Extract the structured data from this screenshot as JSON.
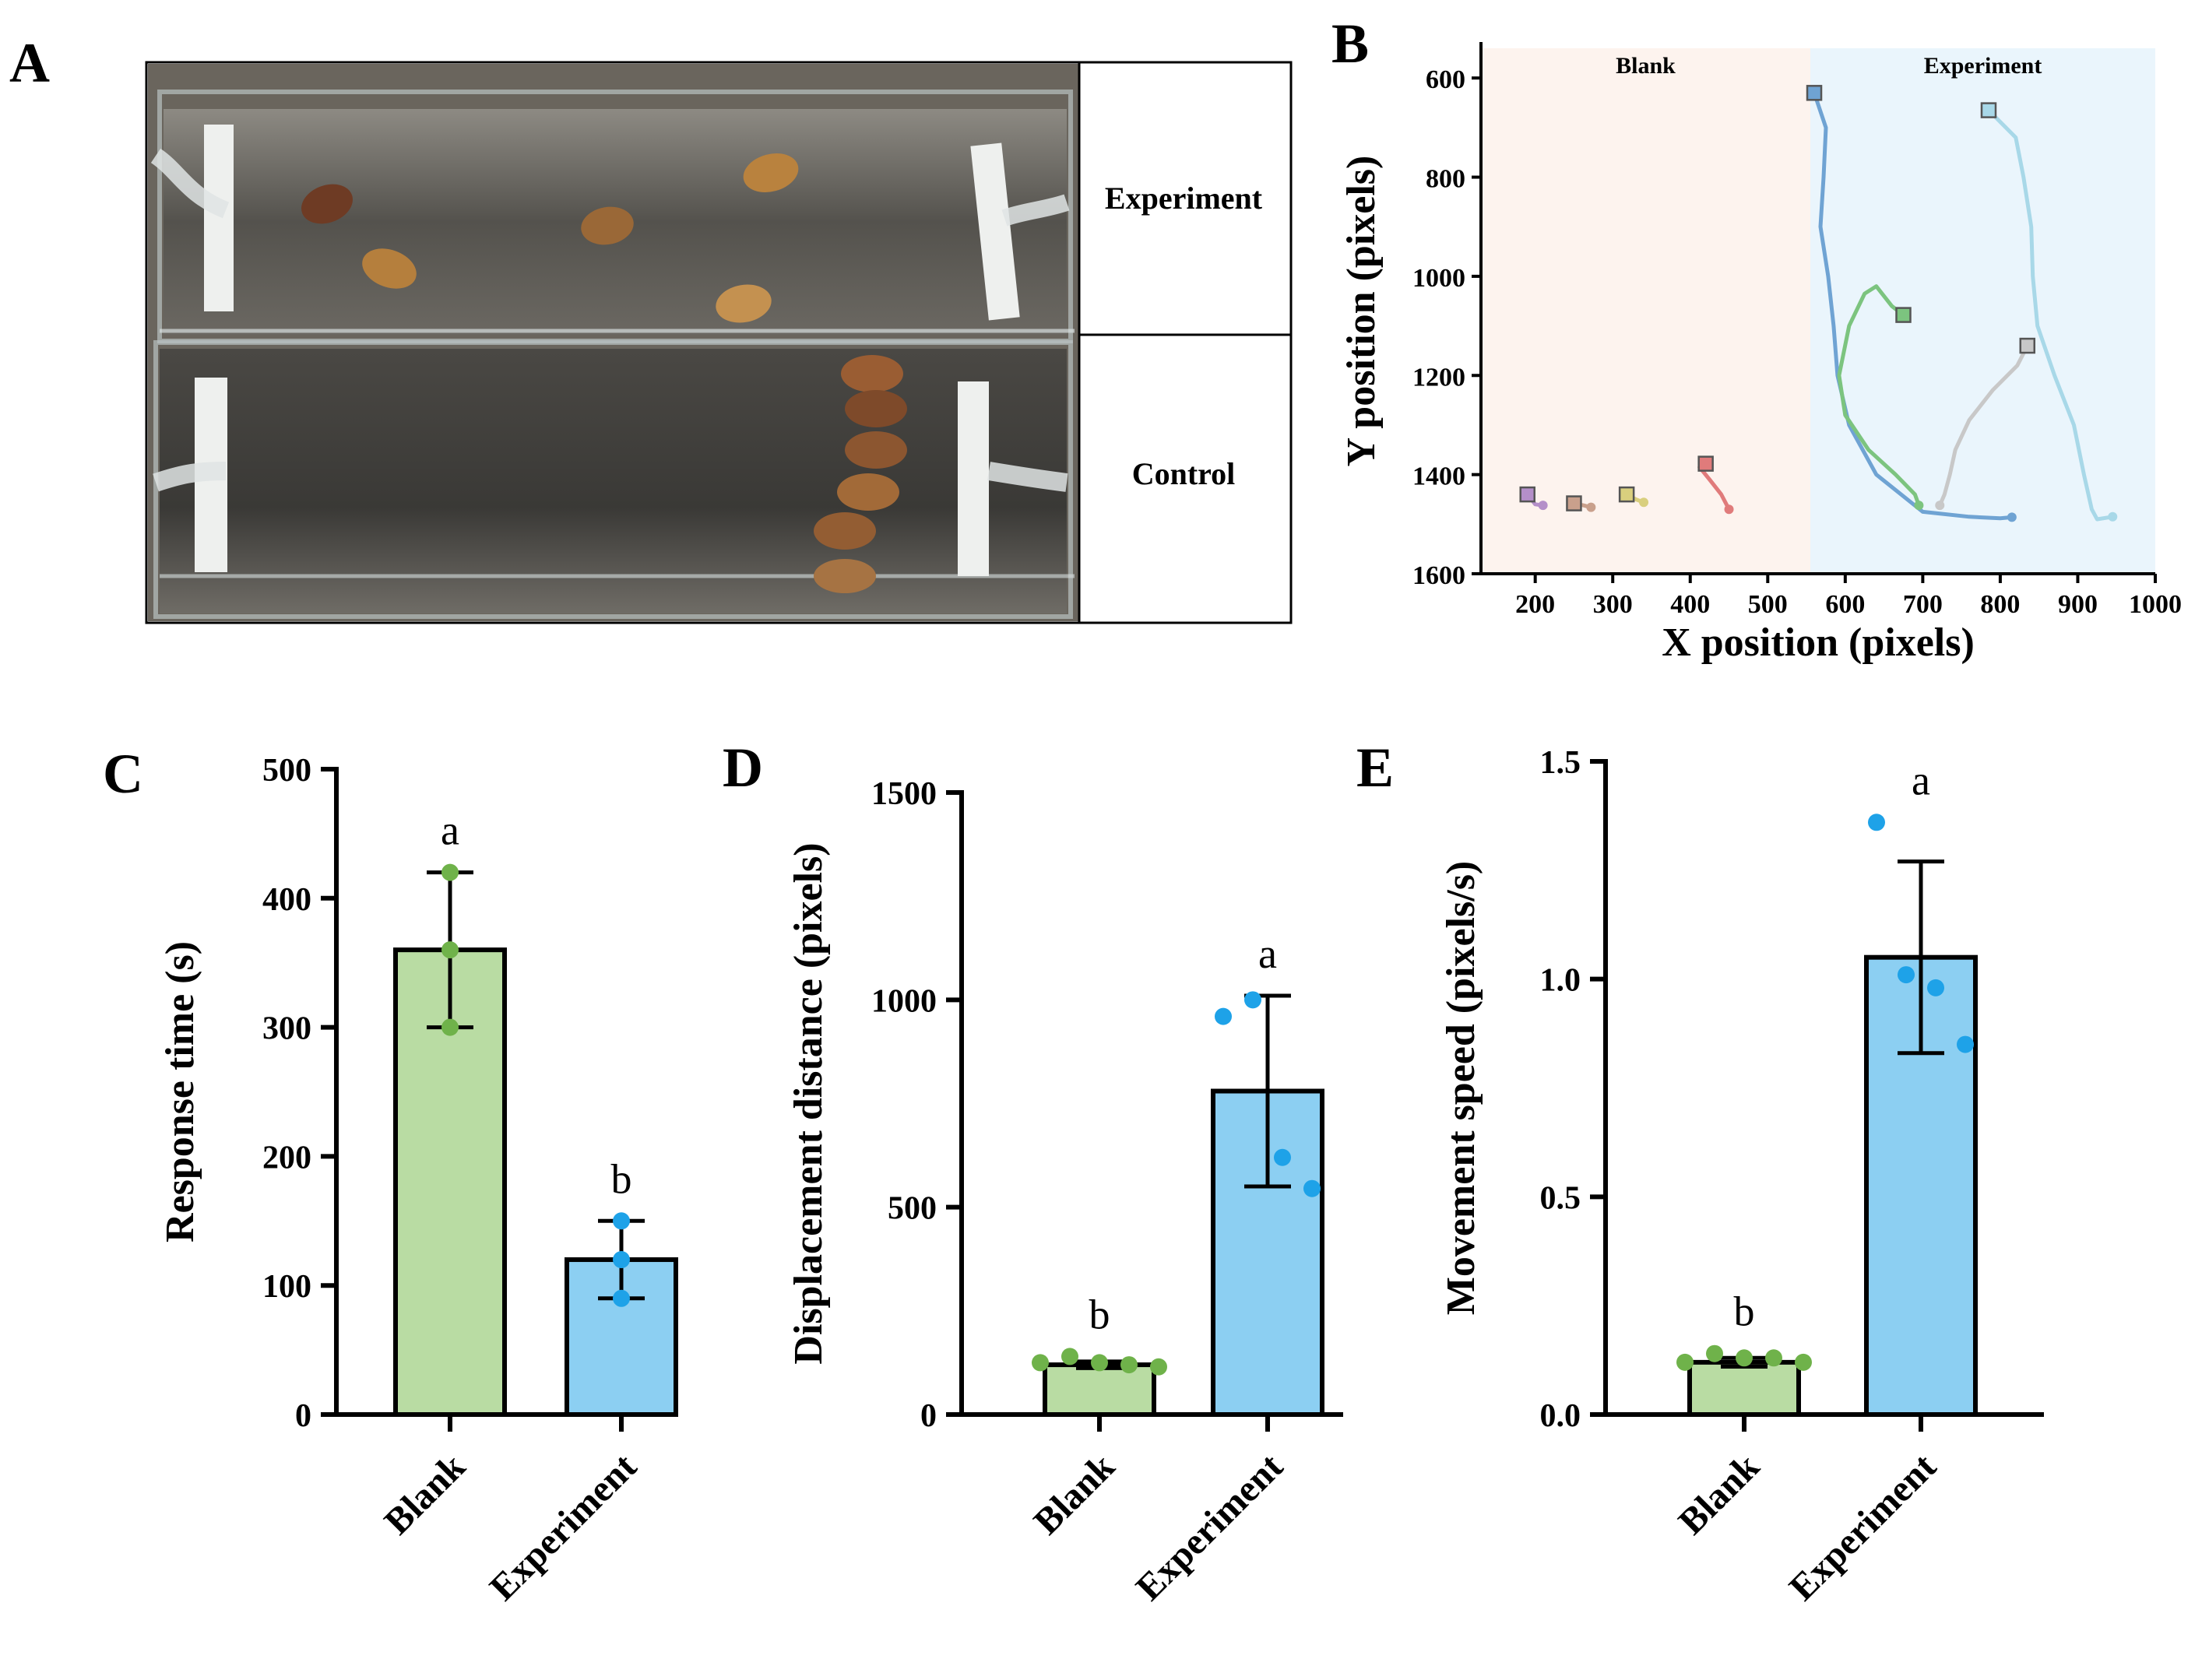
{
  "panels": {
    "a": {
      "letter": "A",
      "labels": {
        "top": "Experiment",
        "bottom": "Control"
      }
    },
    "b": {
      "letter": "B"
    },
    "c": {
      "letter": "C"
    },
    "d": {
      "letter": "D"
    },
    "e": {
      "letter": "E"
    }
  },
  "chart_data": [
    {
      "panel": "B",
      "type": "line",
      "xlabel": "X position (pixels)",
      "ylabel": "Y position (pixels)",
      "xlim": [
        130,
        1000
      ],
      "ylim": [
        1600,
        540
      ],
      "y_inverted": true,
      "xticks": [
        200,
        300,
        400,
        500,
        600,
        700,
        800,
        900,
        1000
      ],
      "yticks": [
        600,
        800,
        1000,
        1200,
        1400,
        1600
      ],
      "zones": [
        {
          "label": "Blank",
          "x_range": [
            130,
            555
          ],
          "color": "#fdf3ee"
        },
        {
          "label": "Experiment",
          "x_range": [
            555,
            1000
          ],
          "color": "#eaf5fc"
        }
      ],
      "series": [
        {
          "color": "#b48fc9",
          "points": [
            [
              190,
              1440
            ],
            [
              200,
              1460
            ],
            [
              210,
              1462
            ]
          ]
        },
        {
          "color": "#c9a08c",
          "points": [
            [
              250,
              1458
            ],
            [
              262,
              1462
            ],
            [
              272,
              1466
            ]
          ]
        },
        {
          "color": "#d9cf7e",
          "points": [
            [
              318,
              1440
            ],
            [
              330,
              1450
            ],
            [
              340,
              1456
            ]
          ]
        },
        {
          "color": "#e07b7b",
          "points": [
            [
              420,
              1378
            ],
            [
              412,
              1385
            ],
            [
              425,
              1410
            ],
            [
              440,
              1440
            ],
            [
              450,
              1470
            ]
          ]
        },
        {
          "color": "#6fa3d3",
          "points": [
            [
              560,
              630
            ],
            [
              575,
              700
            ],
            [
              572,
              800
            ],
            [
              568,
              900
            ],
            [
              578,
              1000
            ],
            [
              585,
              1100
            ],
            [
              590,
              1200
            ],
            [
              605,
              1300
            ],
            [
              640,
              1400
            ],
            [
              700,
              1475
            ],
            [
              760,
              1485
            ],
            [
              800,
              1488
            ],
            [
              815,
              1486
            ]
          ]
        },
        {
          "color": "#7cc47f",
          "points": [
            [
              675,
              1078
            ],
            [
              660,
              1060
            ],
            [
              640,
              1020
            ],
            [
              625,
              1035
            ],
            [
              605,
              1100
            ],
            [
              592,
              1200
            ],
            [
              600,
              1280
            ],
            [
              630,
              1350
            ],
            [
              665,
              1400
            ],
            [
              690,
              1440
            ],
            [
              695,
              1462
            ]
          ]
        },
        {
          "color": "#c8c8c8",
          "points": [
            [
              835,
              1140
            ],
            [
              822,
              1180
            ],
            [
              790,
              1230
            ],
            [
              760,
              1290
            ],
            [
              742,
              1350
            ],
            [
              735,
              1400
            ],
            [
              728,
              1440
            ],
            [
              722,
              1462
            ]
          ]
        },
        {
          "color": "#a8d8e8",
          "points": [
            [
              785,
              665
            ],
            [
              820,
              720
            ],
            [
              830,
              800
            ],
            [
              840,
              900
            ],
            [
              842,
              1000
            ],
            [
              848,
              1100
            ],
            [
              870,
              1200
            ],
            [
              895,
              1300
            ],
            [
              908,
              1400
            ],
            [
              918,
              1470
            ],
            [
              925,
              1490
            ],
            [
              945,
              1485
            ]
          ]
        }
      ]
    },
    {
      "panel": "C",
      "type": "bar",
      "categories": [
        "Blank",
        "Experiment"
      ],
      "values": [
        360,
        120
      ],
      "errors": [
        60,
        30
      ],
      "points": [
        [
          420,
          360,
          300
        ],
        [
          150,
          120,
          90
        ]
      ],
      "significance": [
        "a",
        "b"
      ],
      "ylabel": "Response time (s)",
      "ylim": [
        0,
        500
      ],
      "yticks": [
        0,
        100,
        200,
        300,
        400,
        500
      ],
      "colors": {
        "bars": [
          "#b9dca3",
          "#8ccff2"
        ],
        "points": [
          "#6fb24a",
          "#1ea2e8"
        ]
      }
    },
    {
      "panel": "D",
      "type": "bar",
      "categories": [
        "Blank",
        "Experiment"
      ],
      "values": [
        120,
        780
      ],
      "errors": [
        8,
        230
      ],
      "points": [
        [
          125,
          140,
          125,
          120,
          115
        ],
        [
          960,
          1000,
          620,
          545
        ]
      ],
      "significance": [
        "b",
        "a"
      ],
      "ylabel": "Displacement distance (pixels)",
      "ylim": [
        0,
        1500
      ],
      "yticks": [
        0,
        500,
        1000,
        1500
      ],
      "colors": {
        "bars": [
          "#b9dca3",
          "#8ccff2"
        ],
        "points": [
          "#6fb24a",
          "#1ea2e8"
        ]
      }
    },
    {
      "panel": "E",
      "type": "bar",
      "categories": [
        "Blank",
        "Experiment"
      ],
      "values": [
        0.12,
        1.05
      ],
      "errors": [
        0.01,
        0.22
      ],
      "points": [
        [
          0.12,
          0.14,
          0.13,
          0.13,
          0.12
        ],
        [
          1.36,
          1.01,
          0.98,
          0.85
        ]
      ],
      "significance": [
        "b",
        "a"
      ],
      "ylabel": "Movement speed (pixels/s)",
      "ylim": [
        0,
        1.5
      ],
      "yticks": [
        0.0,
        0.5,
        1.0,
        1.5
      ],
      "tick_format": "0.0",
      "colors": {
        "bars": [
          "#b9dca3",
          "#8ccff2"
        ],
        "points": [
          "#6fb24a",
          "#1ea2e8"
        ]
      }
    }
  ]
}
